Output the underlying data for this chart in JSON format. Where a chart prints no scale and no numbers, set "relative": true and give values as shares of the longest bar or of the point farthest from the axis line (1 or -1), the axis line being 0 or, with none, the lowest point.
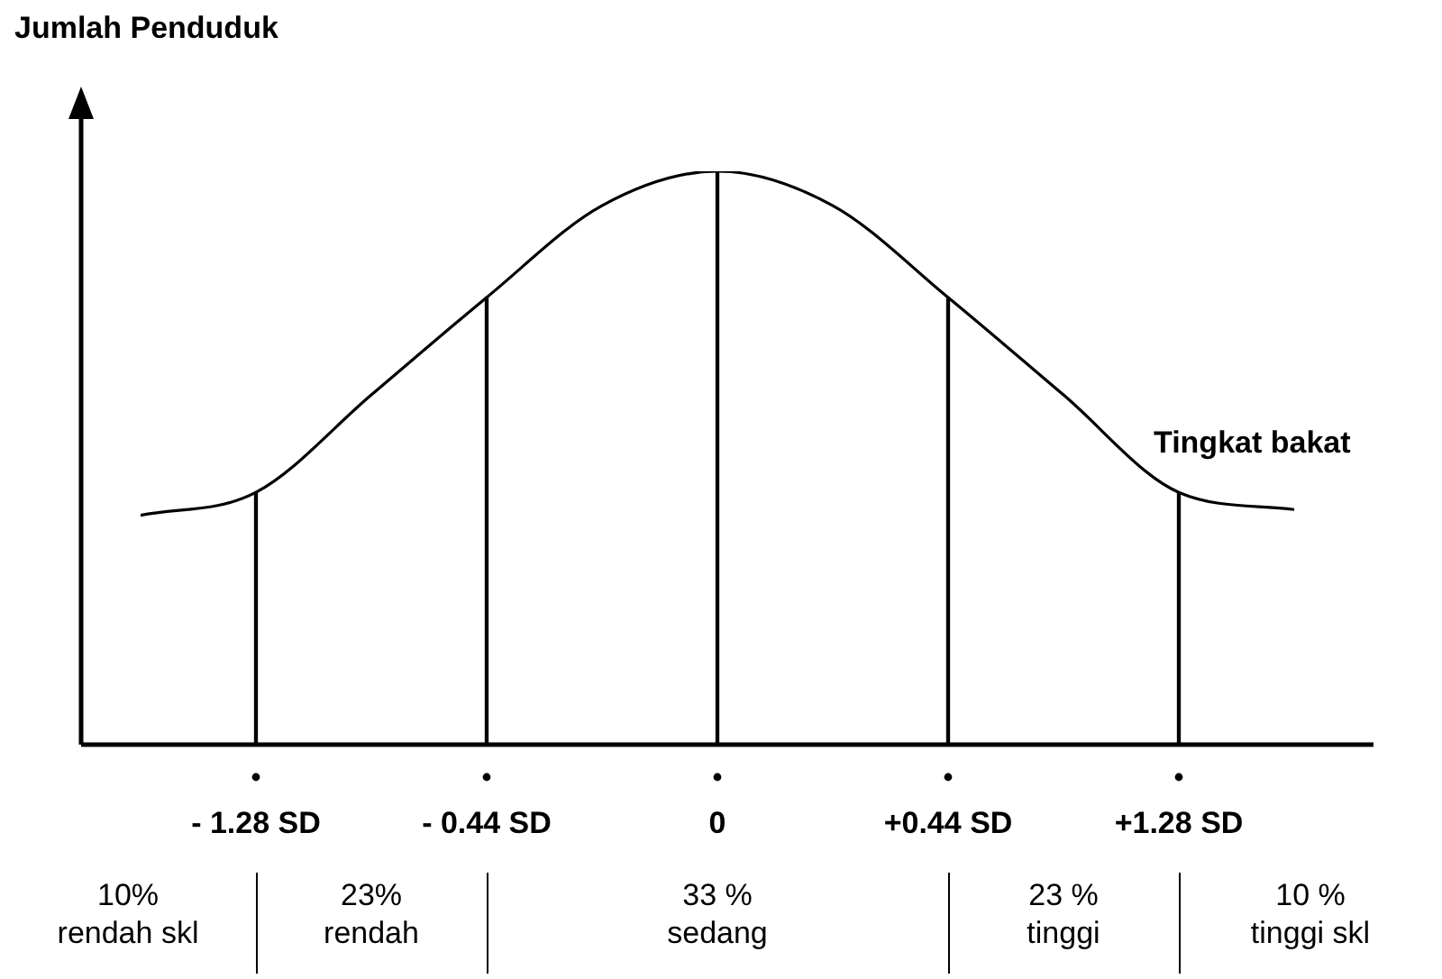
{
  "chart_data": {
    "type": "line",
    "relative": true,
    "ylabel": "Jumlah Penduduk",
    "xlabel": "Tingkat bakat",
    "marker": "none",
    "categories": [
      null,
      "- 1.28 SD",
      null,
      "- 0.44 SD",
      null,
      "0",
      null,
      "+0.44 SD",
      null,
      "+1.28 SD",
      null
    ],
    "series": [
      {
        "color": "#000000",
        "values": [
          0.4,
          0.44,
          0.61,
          0.78,
          0.94,
          1,
          0.94,
          0.78,
          0.61,
          0.44,
          0.41
        ]
      },
      {
        "type": "bar",
        "color": "#000000",
        "values": [
          null,
          0.44,
          null,
          0.78,
          null,
          1,
          null,
          0.78,
          null,
          0.44,
          null
        ]
      }
    ],
    "annotations": [
      "10%\nrendah skl",
      "23%\nrendah",
      "33 %\nsedang",
      "23 %\ntinggi",
      "10 %\ntinggi skl"
    ]
  }
}
